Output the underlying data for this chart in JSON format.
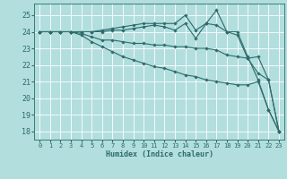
{
  "xlabel": "Humidex (Indice chaleur)",
  "bg_color": "#b2dede",
  "grid_color": "#ffffff",
  "line_color": "#2d6b6b",
  "xlim": [
    -0.5,
    23.5
  ],
  "ylim": [
    17.5,
    25.7
  ],
  "yticks": [
    18,
    19,
    20,
    21,
    22,
    23,
    24,
    25
  ],
  "xticks": [
    0,
    1,
    2,
    3,
    4,
    5,
    6,
    7,
    8,
    9,
    10,
    11,
    12,
    13,
    14,
    15,
    16,
    17,
    18,
    19,
    20,
    21,
    22,
    23
  ],
  "series": [
    [
      24.0,
      24.0,
      24.0,
      24.0,
      24.0,
      24.0,
      24.1,
      24.2,
      24.3,
      24.4,
      24.5,
      24.5,
      24.5,
      24.5,
      25.0,
      24.1,
      24.5,
      25.3,
      24.0,
      24.0,
      22.5,
      21.1,
      19.3,
      18.0
    ],
    [
      24.0,
      24.0,
      24.0,
      24.0,
      24.0,
      24.0,
      24.0,
      24.1,
      24.1,
      24.2,
      24.3,
      24.4,
      24.3,
      24.1,
      24.5,
      23.6,
      24.5,
      24.4,
      24.0,
      23.8,
      22.4,
      21.5,
      21.1,
      18.0
    ],
    [
      24.0,
      24.0,
      24.0,
      24.0,
      23.9,
      23.7,
      23.5,
      23.5,
      23.4,
      23.3,
      23.3,
      23.2,
      23.2,
      23.1,
      23.1,
      23.0,
      23.0,
      22.9,
      22.6,
      22.5,
      22.4,
      22.5,
      21.1,
      18.0
    ],
    [
      24.0,
      24.0,
      24.0,
      24.0,
      23.8,
      23.4,
      23.1,
      22.8,
      22.5,
      22.3,
      22.1,
      21.9,
      21.8,
      21.6,
      21.4,
      21.3,
      21.1,
      21.0,
      20.9,
      20.8,
      20.8,
      21.0,
      19.3,
      18.0
    ]
  ]
}
